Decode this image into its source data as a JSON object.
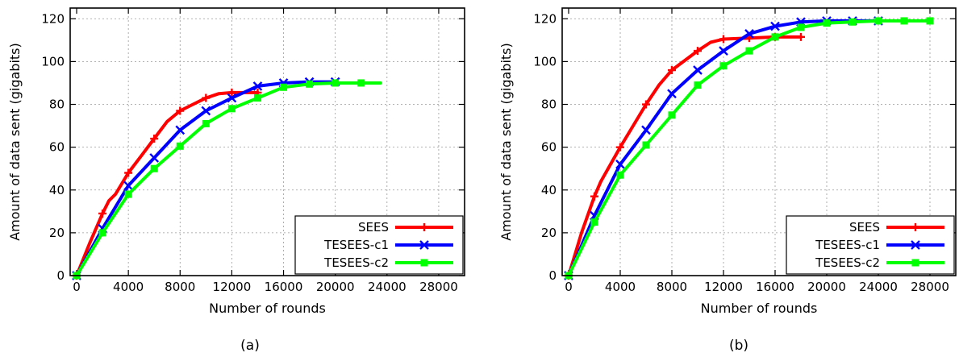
{
  "chart_data": [
    {
      "type": "line",
      "caption": "(a)",
      "xlabel": "Number of rounds",
      "ylabel": "Amount of data sent (gigabits)",
      "xlim": [
        -500,
        30000
      ],
      "ylim": [
        0,
        125
      ],
      "xticks": [
        0,
        4000,
        8000,
        12000,
        16000,
        20000,
        24000,
        28000
      ],
      "yticks": [
        0,
        20,
        40,
        60,
        80,
        100,
        120
      ],
      "grid": true,
      "legend_position": "bottom-right",
      "series": [
        {
          "name": "SEES",
          "color": "#ff0000",
          "marker": "plus",
          "points": [
            [
              0,
              0
            ],
            [
              1000,
              15
            ],
            [
              2000,
              29
            ],
            [
              2500,
              35
            ],
            [
              3000,
              38
            ],
            [
              4000,
              48
            ],
            [
              5000,
              56
            ],
            [
              6000,
              64
            ],
            [
              7000,
              72
            ],
            [
              8000,
              77
            ],
            [
              9000,
              80
            ],
            [
              10000,
              83
            ],
            [
              11000,
              85
            ],
            [
              12000,
              85.5
            ],
            [
              13000,
              85.5
            ],
            [
              14000,
              85.5
            ]
          ],
          "markers": [
            [
              0,
              0
            ],
            [
              2000,
              29
            ],
            [
              4000,
              48
            ],
            [
              6000,
              64
            ],
            [
              8000,
              77
            ],
            [
              10000,
              83
            ],
            [
              12000,
              85.5
            ],
            [
              14000,
              85.5
            ]
          ]
        },
        {
          "name": "TESEES-c1",
          "color": "#0000ff",
          "marker": "cross",
          "points": [
            [
              0,
              0
            ],
            [
              2000,
              22
            ],
            [
              4000,
              42
            ],
            [
              6000,
              55
            ],
            [
              8000,
              68
            ],
            [
              10000,
              77
            ],
            [
              12000,
              83
            ],
            [
              14000,
              88.5
            ],
            [
              16000,
              90
            ],
            [
              18000,
              90.5
            ],
            [
              20000,
              90.5
            ]
          ],
          "markers": [
            [
              0,
              0
            ],
            [
              2000,
              22
            ],
            [
              4000,
              42
            ],
            [
              6000,
              55
            ],
            [
              8000,
              68
            ],
            [
              10000,
              77
            ],
            [
              12000,
              83
            ],
            [
              14000,
              88.5
            ],
            [
              16000,
              90
            ],
            [
              18000,
              90.5
            ],
            [
              20000,
              90.5
            ]
          ]
        },
        {
          "name": "TESEES-c2",
          "color": "#00ff00",
          "marker": "square",
          "points": [
            [
              0,
              0
            ],
            [
              2000,
              20
            ],
            [
              4000,
              38
            ],
            [
              6000,
              50
            ],
            [
              8000,
              60.5
            ],
            [
              10000,
              71
            ],
            [
              12000,
              78
            ],
            [
              14000,
              83
            ],
            [
              16000,
              88
            ],
            [
              18000,
              89.5
            ],
            [
              20000,
              90
            ],
            [
              22000,
              90
            ],
            [
              23500,
              90
            ]
          ],
          "markers": [
            [
              0,
              0
            ],
            [
              2000,
              20
            ],
            [
              4000,
              38
            ],
            [
              6000,
              50
            ],
            [
              8000,
              60.5
            ],
            [
              10000,
              71
            ],
            [
              12000,
              78
            ],
            [
              14000,
              83
            ],
            [
              16000,
              88
            ],
            [
              18000,
              89.5
            ],
            [
              20000,
              90
            ],
            [
              22000,
              90
            ]
          ]
        }
      ]
    },
    {
      "type": "line",
      "caption": "(b)",
      "xlabel": "Number of rounds",
      "ylabel": "Amount of data sent (gigabits)",
      "xlim": [
        -500,
        30000
      ],
      "ylim": [
        0,
        125
      ],
      "xticks": [
        0,
        4000,
        8000,
        12000,
        16000,
        20000,
        24000,
        28000
      ],
      "yticks": [
        0,
        20,
        40,
        60,
        80,
        100,
        120
      ],
      "grid": true,
      "legend_position": "bottom-right",
      "series": [
        {
          "name": "SEES",
          "color": "#ff0000",
          "marker": "plus",
          "points": [
            [
              0,
              0
            ],
            [
              1000,
              20
            ],
            [
              2000,
              37
            ],
            [
              2500,
              44
            ],
            [
              4000,
              60
            ],
            [
              6000,
              80
            ],
            [
              7000,
              89
            ],
            [
              8000,
              96
            ],
            [
              10000,
              105
            ],
            [
              11000,
              109
            ],
            [
              12000,
              110.5
            ],
            [
              14000,
              111
            ],
            [
              16000,
              111.5
            ],
            [
              18000,
              111.5
            ]
          ],
          "markers": [
            [
              0,
              0
            ],
            [
              2000,
              37
            ],
            [
              4000,
              60
            ],
            [
              6000,
              80
            ],
            [
              8000,
              96
            ],
            [
              10000,
              105
            ],
            [
              12000,
              110.5
            ],
            [
              14000,
              111
            ],
            [
              16000,
              111.5
            ],
            [
              18000,
              111.5
            ]
          ]
        },
        {
          "name": "TESEES-c1",
          "color": "#0000ff",
          "marker": "cross",
          "points": [
            [
              0,
              0
            ],
            [
              2000,
              28
            ],
            [
              4000,
              52
            ],
            [
              6000,
              68
            ],
            [
              8000,
              85
            ],
            [
              10000,
              96
            ],
            [
              12000,
              105
            ],
            [
              14000,
              113
            ],
            [
              16000,
              116.5
            ],
            [
              18000,
              118.5
            ],
            [
              20000,
              119
            ],
            [
              22000,
              119
            ],
            [
              24000,
              119
            ]
          ],
          "markers": [
            [
              0,
              0
            ],
            [
              2000,
              28
            ],
            [
              4000,
              52
            ],
            [
              6000,
              68
            ],
            [
              8000,
              85
            ],
            [
              10000,
              96
            ],
            [
              12000,
              105
            ],
            [
              14000,
              113
            ],
            [
              16000,
              116.5
            ],
            [
              18000,
              118.5
            ],
            [
              20000,
              119
            ],
            [
              22000,
              119
            ],
            [
              24000,
              119
            ]
          ]
        },
        {
          "name": "TESEES-c2",
          "color": "#00ff00",
          "marker": "square",
          "points": [
            [
              0,
              0
            ],
            [
              2000,
              25
            ],
            [
              4000,
              47
            ],
            [
              6000,
              61
            ],
            [
              8000,
              75
            ],
            [
              10000,
              89
            ],
            [
              12000,
              98
            ],
            [
              14000,
              105
            ],
            [
              16000,
              111.5
            ],
            [
              18000,
              116
            ],
            [
              20000,
              118
            ],
            [
              22000,
              118.5
            ],
            [
              24000,
              119
            ],
            [
              26000,
              119
            ],
            [
              28000,
              119
            ]
          ],
          "markers": [
            [
              0,
              0
            ],
            [
              2000,
              25
            ],
            [
              4000,
              47
            ],
            [
              6000,
              61
            ],
            [
              8000,
              75
            ],
            [
              10000,
              89
            ],
            [
              12000,
              98
            ],
            [
              14000,
              105
            ],
            [
              16000,
              111.5
            ],
            [
              18000,
              116
            ],
            [
              20000,
              118
            ],
            [
              22000,
              118.5
            ],
            [
              24000,
              119
            ],
            [
              26000,
              119
            ],
            [
              28000,
              119
            ]
          ]
        }
      ]
    }
  ]
}
